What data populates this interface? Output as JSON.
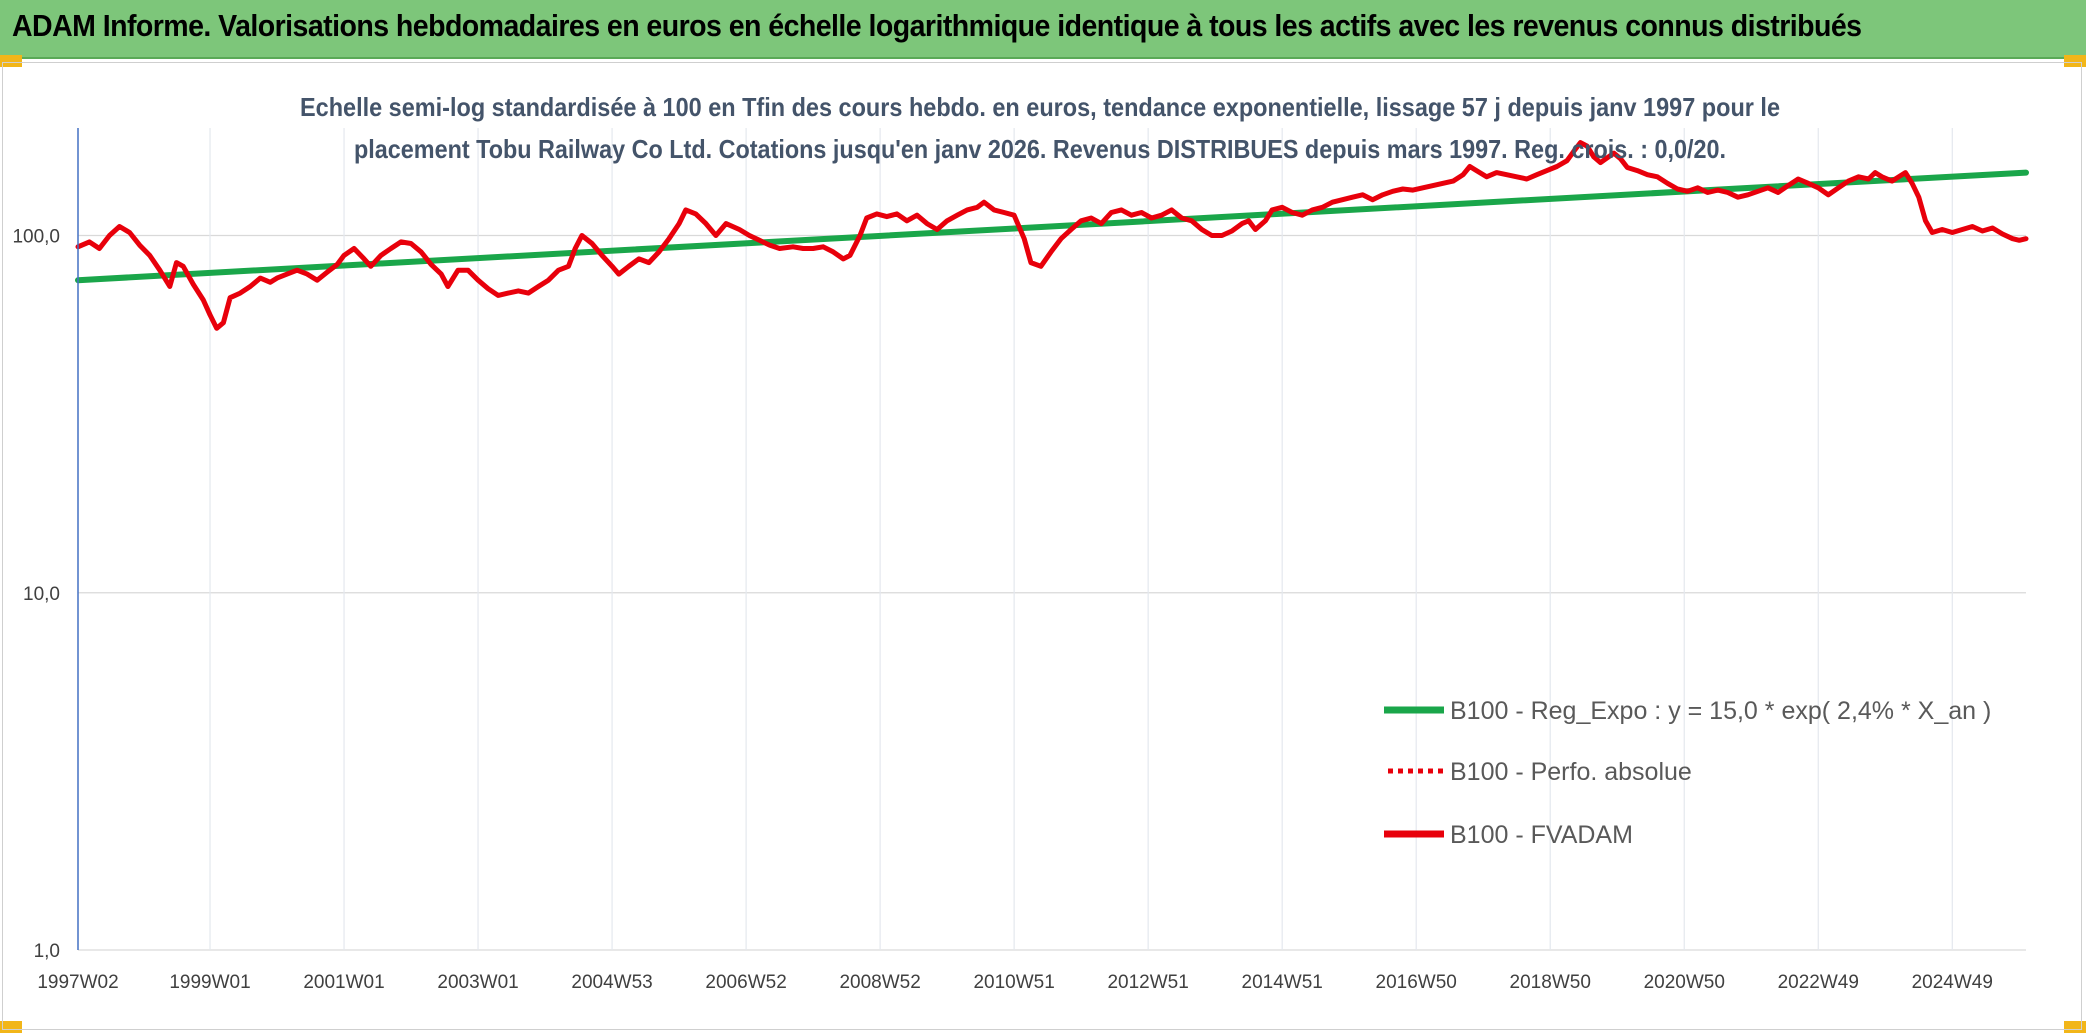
{
  "banner": {
    "title": "ADAM Informe. Valorisations hebdomadaires en euros en échelle logarithmique identique à tous les actifs avec les revenus connus distribués"
  },
  "colors": {
    "banner": "#7dc67a",
    "corner": "#f2b619",
    "trend": "#1aa64a",
    "fvadam": "#e8000b",
    "perf": "#e8000b",
    "axis": "#4472c4",
    "grid": "#d9d9d9"
  },
  "chart_data": {
    "type": "line",
    "subtitle_lines": [
      "Echelle semi-log standardisée à 100 en Tfin des cours hebdo. en euros, tendance exponentielle, lissage 57 j depuis janv 1997 pour le",
      "placement Tobu Railway Co Ltd. Cotations jusqu'en janv 2026. Revenus DISTRIBUES depuis mars 1997. Reg. crois. : 0,0/20."
    ],
    "y_scale": "log",
    "ylim": [
      1,
      200
    ],
    "y_ticks": [
      {
        "value": 1,
        "label": "1,0"
      },
      {
        "value": 10,
        "label": "10,0"
      },
      {
        "value": 100,
        "label": "100,0"
      }
    ],
    "x_range": [
      1997.03,
      2026.1
    ],
    "x_ticks": [
      {
        "value": 1997.03,
        "label": "1997W02"
      },
      {
        "value": 1999.0,
        "label": "1999W01"
      },
      {
        "value": 2001.0,
        "label": "2001W01"
      },
      {
        "value": 2003.0,
        "label": "2003W01"
      },
      {
        "value": 2005.0,
        "label": "2004W53"
      },
      {
        "value": 2007.0,
        "label": "2006W52"
      },
      {
        "value": 2009.0,
        "label": "2008W52"
      },
      {
        "value": 2011.0,
        "label": "2010W51"
      },
      {
        "value": 2013.0,
        "label": "2012W51"
      },
      {
        "value": 2015.0,
        "label": "2014W51"
      },
      {
        "value": 2017.0,
        "label": "2016W50"
      },
      {
        "value": 2019.0,
        "label": "2018W50"
      },
      {
        "value": 2021.0,
        "label": "2020W50"
      },
      {
        "value": 2023.0,
        "label": "2022W49"
      },
      {
        "value": 2025.0,
        "label": "2024W49"
      }
    ],
    "grid": true,
    "legend_position": "bottom-right",
    "legend": [
      {
        "key": "trend",
        "label": "B100 - Reg_Expo : y = 15,0 * exp( 2,4% *  X_an )",
        "style": "solid"
      },
      {
        "key": "perf",
        "label": "B100 - Perfo. absolue",
        "style": "dotted"
      },
      {
        "key": "fvadam",
        "label": "B100 - FVADAM",
        "style": "solid"
      }
    ],
    "series": [
      {
        "key": "trend",
        "points": [
          [
            1997.03,
            75
          ],
          [
            2026.1,
            150
          ]
        ]
      },
      {
        "key": "fvadam",
        "points": [
          [
            1997.03,
            93
          ],
          [
            1997.2,
            96
          ],
          [
            1997.35,
            92
          ],
          [
            1997.5,
            100
          ],
          [
            1997.65,
            106
          ],
          [
            1997.8,
            102
          ],
          [
            1997.95,
            94
          ],
          [
            1998.1,
            88
          ],
          [
            1998.25,
            80
          ],
          [
            1998.4,
            72
          ],
          [
            1998.5,
            84
          ],
          [
            1998.6,
            82
          ],
          [
            1998.75,
            73
          ],
          [
            1998.9,
            66
          ],
          [
            1999.0,
            60
          ],
          [
            1999.1,
            55
          ],
          [
            1999.2,
            57
          ],
          [
            1999.3,
            67
          ],
          [
            1999.45,
            69
          ],
          [
            1999.6,
            72
          ],
          [
            1999.75,
            76
          ],
          [
            1999.9,
            74
          ],
          [
            2000.0,
            76
          ],
          [
            2000.15,
            78
          ],
          [
            2000.3,
            80
          ],
          [
            2000.45,
            78
          ],
          [
            2000.6,
            75
          ],
          [
            2000.75,
            79
          ],
          [
            2000.9,
            83
          ],
          [
            2001.0,
            88
          ],
          [
            2001.15,
            92
          ],
          [
            2001.3,
            86
          ],
          [
            2001.4,
            82
          ],
          [
            2001.55,
            88
          ],
          [
            2001.7,
            92
          ],
          [
            2001.85,
            96
          ],
          [
            2002.0,
            95
          ],
          [
            2002.15,
            90
          ],
          [
            2002.3,
            83
          ],
          [
            2002.45,
            78
          ],
          [
            2002.55,
            72
          ],
          [
            2002.7,
            80
          ],
          [
            2002.85,
            80
          ],
          [
            2003.0,
            75
          ],
          [
            2003.15,
            71
          ],
          [
            2003.3,
            68
          ],
          [
            2003.45,
            69
          ],
          [
            2003.6,
            70
          ],
          [
            2003.75,
            69
          ],
          [
            2003.9,
            72
          ],
          [
            2004.05,
            75
          ],
          [
            2004.2,
            80
          ],
          [
            2004.35,
            82
          ],
          [
            2004.45,
            92
          ],
          [
            2004.55,
            100
          ],
          [
            2004.7,
            95
          ],
          [
            2004.85,
            88
          ],
          [
            2005.0,
            82
          ],
          [
            2005.1,
            78
          ],
          [
            2005.25,
            82
          ],
          [
            2005.4,
            86
          ],
          [
            2005.55,
            84
          ],
          [
            2005.7,
            90
          ],
          [
            2005.85,
            98
          ],
          [
            2006.0,
            108
          ],
          [
            2006.1,
            118
          ],
          [
            2006.25,
            115
          ],
          [
            2006.4,
            108
          ],
          [
            2006.55,
            100
          ],
          [
            2006.7,
            108
          ],
          [
            2006.9,
            104
          ],
          [
            2007.05,
            100
          ],
          [
            2007.2,
            97
          ],
          [
            2007.35,
            94
          ],
          [
            2007.5,
            92
          ],
          [
            2007.7,
            93
          ],
          [
            2007.85,
            92
          ],
          [
            2008.0,
            92
          ],
          [
            2008.15,
            93
          ],
          [
            2008.3,
            90
          ],
          [
            2008.45,
            86
          ],
          [
            2008.55,
            88
          ],
          [
            2008.7,
            100
          ],
          [
            2008.8,
            112
          ],
          [
            2008.95,
            115
          ],
          [
            2009.1,
            113
          ],
          [
            2009.25,
            115
          ],
          [
            2009.4,
            110
          ],
          [
            2009.55,
            114
          ],
          [
            2009.7,
            108
          ],
          [
            2009.85,
            104
          ],
          [
            2010.0,
            110
          ],
          [
            2010.15,
            114
          ],
          [
            2010.3,
            118
          ],
          [
            2010.45,
            120
          ],
          [
            2010.55,
            124
          ],
          [
            2010.7,
            118
          ],
          [
            2010.85,
            116
          ],
          [
            2011.0,
            114
          ],
          [
            2011.15,
            98
          ],
          [
            2011.25,
            84
          ],
          [
            2011.4,
            82
          ],
          [
            2011.55,
            90
          ],
          [
            2011.7,
            98
          ],
          [
            2011.85,
            104
          ],
          [
            2012.0,
            110
          ],
          [
            2012.15,
            112
          ],
          [
            2012.3,
            108
          ],
          [
            2012.45,
            116
          ],
          [
            2012.6,
            118
          ],
          [
            2012.75,
            114
          ],
          [
            2012.9,
            116
          ],
          [
            2013.05,
            112
          ],
          [
            2013.2,
            114
          ],
          [
            2013.35,
            118
          ],
          [
            2013.5,
            112
          ],
          [
            2013.65,
            110
          ],
          [
            2013.8,
            104
          ],
          [
            2013.95,
            100
          ],
          [
            2014.1,
            100
          ],
          [
            2014.25,
            103
          ],
          [
            2014.4,
            108
          ],
          [
            2014.5,
            110
          ],
          [
            2014.6,
            104
          ],
          [
            2014.75,
            110
          ],
          [
            2014.85,
            118
          ],
          [
            2015.0,
            120
          ],
          [
            2015.15,
            116
          ],
          [
            2015.3,
            114
          ],
          [
            2015.45,
            118
          ],
          [
            2015.6,
            120
          ],
          [
            2015.75,
            124
          ],
          [
            2015.9,
            126
          ],
          [
            2016.05,
            128
          ],
          [
            2016.2,
            130
          ],
          [
            2016.35,
            126
          ],
          [
            2016.5,
            130
          ],
          [
            2016.65,
            133
          ],
          [
            2016.8,
            135
          ],
          [
            2016.95,
            134
          ],
          [
            2017.1,
            136
          ],
          [
            2017.25,
            138
          ],
          [
            2017.4,
            140
          ],
          [
            2017.55,
            142
          ],
          [
            2017.7,
            148
          ],
          [
            2017.8,
            156
          ],
          [
            2017.9,
            152
          ],
          [
            2018.05,
            146
          ],
          [
            2018.2,
            150
          ],
          [
            2018.35,
            148
          ],
          [
            2018.5,
            146
          ],
          [
            2018.65,
            144
          ],
          [
            2018.8,
            148
          ],
          [
            2018.95,
            152
          ],
          [
            2019.1,
            156
          ],
          [
            2019.25,
            162
          ],
          [
            2019.35,
            172
          ],
          [
            2019.45,
            182
          ],
          [
            2019.55,
            178
          ],
          [
            2019.65,
            166
          ],
          [
            2019.75,
            160
          ],
          [
            2019.85,
            165
          ],
          [
            2019.95,
            170
          ],
          [
            2020.05,
            164
          ],
          [
            2020.15,
            155
          ],
          [
            2020.3,
            152
          ],
          [
            2020.45,
            148
          ],
          [
            2020.6,
            146
          ],
          [
            2020.75,
            140
          ],
          [
            2020.9,
            135
          ],
          [
            2021.05,
            133
          ],
          [
            2021.2,
            136
          ],
          [
            2021.35,
            132
          ],
          [
            2021.5,
            134
          ],
          [
            2021.65,
            132
          ],
          [
            2021.8,
            128
          ],
          [
            2021.95,
            130
          ],
          [
            2022.1,
            133
          ],
          [
            2022.25,
            136
          ],
          [
            2022.4,
            132
          ],
          [
            2022.55,
            138
          ],
          [
            2022.7,
            144
          ],
          [
            2022.85,
            140
          ],
          [
            2023.0,
            136
          ],
          [
            2023.15,
            130
          ],
          [
            2023.3,
            136
          ],
          [
            2023.45,
            142
          ],
          [
            2023.6,
            146
          ],
          [
            2023.75,
            144
          ],
          [
            2023.85,
            150
          ],
          [
            2023.95,
            146
          ],
          [
            2024.1,
            142
          ],
          [
            2024.2,
            146
          ],
          [
            2024.3,
            150
          ],
          [
            2024.4,
            140
          ],
          [
            2024.5,
            128
          ],
          [
            2024.6,
            110
          ],
          [
            2024.7,
            102
          ],
          [
            2024.85,
            104
          ],
          [
            2025.0,
            102
          ],
          [
            2025.15,
            104
          ],
          [
            2025.3,
            106
          ],
          [
            2025.45,
            103
          ],
          [
            2025.6,
            105
          ],
          [
            2025.75,
            101
          ],
          [
            2025.9,
            98
          ],
          [
            2026.0,
            97
          ],
          [
            2026.1,
            98
          ]
        ]
      }
    ]
  }
}
